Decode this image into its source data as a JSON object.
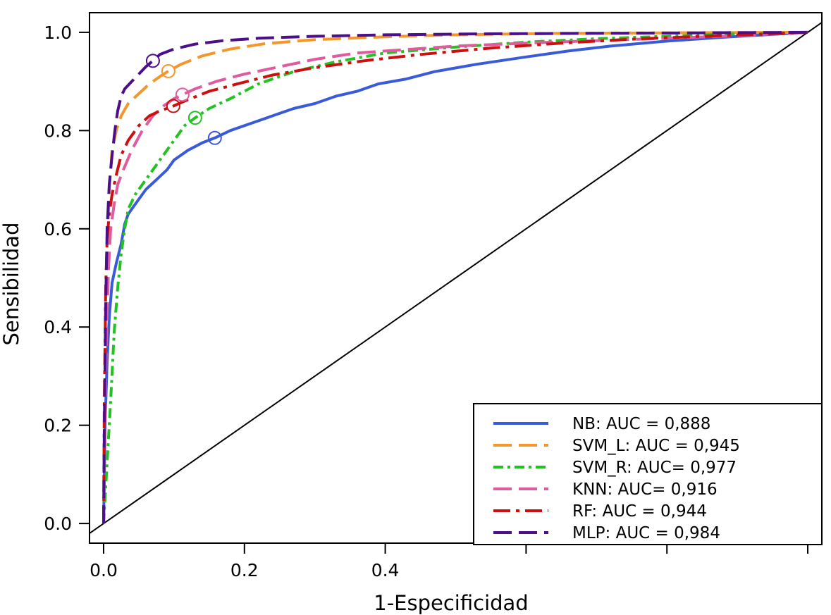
{
  "chart_data": {
    "type": "line",
    "title": "",
    "xlabel": "1-Especificidad",
    "ylabel": "Sensibilidad",
    "xlim": [
      -0.02,
      1.02
    ],
    "ylim": [
      -0.04,
      1.04
    ],
    "x_ticks": [
      0.0,
      0.2,
      0.4,
      0.6,
      0.8,
      1.0
    ],
    "x_tick_labels": [
      "0.0",
      "0.2",
      "0.4",
      "",
      "",
      ""
    ],
    "y_ticks": [
      0.0,
      0.2,
      0.4,
      0.6,
      0.8,
      1.0
    ],
    "y_tick_labels": [
      "0.0",
      "0.2",
      "0.4",
      "0.6",
      "0.8",
      "1.0"
    ],
    "grid": false,
    "legend_position": "bottom-right",
    "diagonal_reference": true,
    "series": [
      {
        "name": "NB: AUC = 0,888",
        "color": "#3a5bd9",
        "dash": "solid",
        "threshold_point": [
          0.158,
          0.785
        ],
        "x": [
          0,
          0.002,
          0.005,
          0.008,
          0.012,
          0.018,
          0.025,
          0.03,
          0.035,
          0.045,
          0.06,
          0.075,
          0.09,
          0.1,
          0.12,
          0.14,
          0.158,
          0.18,
          0.21,
          0.24,
          0.27,
          0.3,
          0.33,
          0.36,
          0.39,
          0.43,
          0.47,
          0.53,
          0.6,
          0.66,
          0.72,
          0.8,
          0.88,
          0.94,
          1.0
        ],
        "y": [
          0,
          0.2,
          0.33,
          0.42,
          0.49,
          0.53,
          0.57,
          0.61,
          0.63,
          0.65,
          0.68,
          0.7,
          0.72,
          0.74,
          0.76,
          0.775,
          0.785,
          0.8,
          0.815,
          0.83,
          0.845,
          0.855,
          0.87,
          0.88,
          0.895,
          0.905,
          0.92,
          0.935,
          0.95,
          0.962,
          0.972,
          0.982,
          0.99,
          0.995,
          1.0
        ]
      },
      {
        "name": "SVM_L: AUC = 0,945",
        "color": "#f5962b",
        "dash": "long-dash",
        "threshold_point": [
          0.092,
          0.921
        ],
        "x": [
          0,
          0.002,
          0.005,
          0.008,
          0.012,
          0.018,
          0.025,
          0.035,
          0.05,
          0.065,
          0.08,
          0.092,
          0.11,
          0.14,
          0.18,
          0.23,
          0.3,
          0.4,
          0.5,
          0.65,
          0.8,
          1.0
        ],
        "y": [
          0,
          0.3,
          0.55,
          0.68,
          0.76,
          0.8,
          0.83,
          0.855,
          0.875,
          0.895,
          0.91,
          0.921,
          0.935,
          0.952,
          0.966,
          0.977,
          0.985,
          0.991,
          0.995,
          0.998,
          0.999,
          1.0
        ]
      },
      {
        "name": "SVM_R: AUC= 0,977",
        "color": "#22c222",
        "dash": "dash-dot",
        "threshold_point": [
          0.13,
          0.826
        ],
        "x": [
          0,
          0.004,
          0.01,
          0.015,
          0.02,
          0.025,
          0.03,
          0.035,
          0.045,
          0.06,
          0.08,
          0.1,
          0.115,
          0.13,
          0.15,
          0.18,
          0.22,
          0.27,
          0.33,
          0.4,
          0.5,
          0.6,
          0.7,
          0.8,
          0.9,
          1.0
        ],
        "y": [
          0,
          0.1,
          0.25,
          0.39,
          0.48,
          0.55,
          0.6,
          0.64,
          0.67,
          0.7,
          0.74,
          0.78,
          0.81,
          0.826,
          0.845,
          0.865,
          0.895,
          0.92,
          0.94,
          0.958,
          0.97,
          0.98,
          0.987,
          0.992,
          0.997,
          1.0
        ]
      },
      {
        "name": "KNN: AUC= 0,916",
        "color": "#e05a9e",
        "dash": "long-dash",
        "threshold_point": [
          0.112,
          0.873
        ],
        "x": [
          0,
          0.002,
          0.004,
          0.007,
          0.01,
          0.015,
          0.02,
          0.028,
          0.04,
          0.055,
          0.07,
          0.085,
          0.1,
          0.112,
          0.13,
          0.16,
          0.2,
          0.25,
          0.3,
          0.36,
          0.43,
          0.5,
          0.6,
          0.7,
          0.8,
          0.9,
          1.0
        ],
        "y": [
          0,
          0.2,
          0.38,
          0.52,
          0.6,
          0.65,
          0.69,
          0.72,
          0.76,
          0.8,
          0.83,
          0.85,
          0.865,
          0.873,
          0.885,
          0.9,
          0.915,
          0.93,
          0.945,
          0.958,
          0.965,
          0.972,
          0.978,
          0.983,
          0.988,
          0.993,
          1.0
        ]
      },
      {
        "name": "RF: AUC = 0,944",
        "color": "#cc1010",
        "dash": "long-dash-dot",
        "threshold_point": [
          0.099,
          0.85
        ],
        "x": [
          0,
          0.001,
          0.003,
          0.005,
          0.008,
          0.012,
          0.018,
          0.025,
          0.035,
          0.05,
          0.065,
          0.08,
          0.099,
          0.12,
          0.15,
          0.19,
          0.24,
          0.3,
          0.37,
          0.45,
          0.55,
          0.65,
          0.75,
          0.85,
          0.93,
          1.0
        ],
        "y": [
          0,
          0.25,
          0.48,
          0.58,
          0.63,
          0.67,
          0.71,
          0.75,
          0.78,
          0.81,
          0.83,
          0.84,
          0.85,
          0.863,
          0.88,
          0.895,
          0.913,
          0.928,
          0.942,
          0.955,
          0.968,
          0.978,
          0.986,
          0.992,
          0.996,
          1.0
        ]
      },
      {
        "name": "MLP: AUC = 0,984",
        "color": "#4b0f8a",
        "dash": "long-dash",
        "threshold_point": [
          0.07,
          0.942
        ],
        "x": [
          0,
          0.001,
          0.003,
          0.005,
          0.008,
          0.012,
          0.016,
          0.02,
          0.025,
          0.03,
          0.04,
          0.05,
          0.06,
          0.07,
          0.08,
          0.1,
          0.13,
          0.17,
          0.22,
          0.3,
          0.4,
          0.55,
          0.7,
          0.85,
          1.0
        ],
        "y": [
          0,
          0.2,
          0.45,
          0.6,
          0.69,
          0.75,
          0.8,
          0.84,
          0.87,
          0.885,
          0.9,
          0.915,
          0.93,
          0.942,
          0.955,
          0.966,
          0.976,
          0.983,
          0.988,
          0.992,
          0.995,
          0.997,
          0.998,
          0.999,
          1.0
        ]
      }
    ]
  }
}
